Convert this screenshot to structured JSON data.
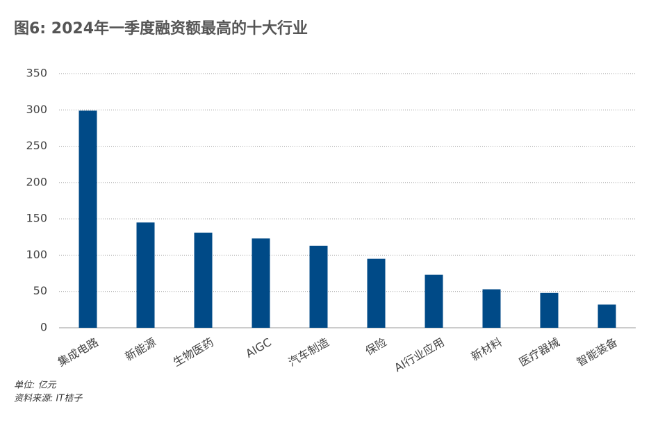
{
  "chart_data": {
    "type": "bar",
    "title": "图6: 2024年一季度融资额最高的十大行业",
    "categories": [
      "集成电路",
      "新能源",
      "生物医药",
      "AIGC",
      "汽车制造",
      "保险",
      "AI行业应用",
      "新材料",
      "医疗器械",
      "智能装备"
    ],
    "values": [
      299,
      145,
      131,
      123,
      113,
      95,
      73,
      53,
      48,
      32
    ],
    "color": "#004a87",
    "ylim": [
      0,
      350
    ],
    "yticks": [
      0,
      50,
      100,
      150,
      200,
      250,
      300,
      350
    ],
    "grid": true,
    "unit_note": "单位: 亿元",
    "source": "资料来源: IT桔子"
  }
}
